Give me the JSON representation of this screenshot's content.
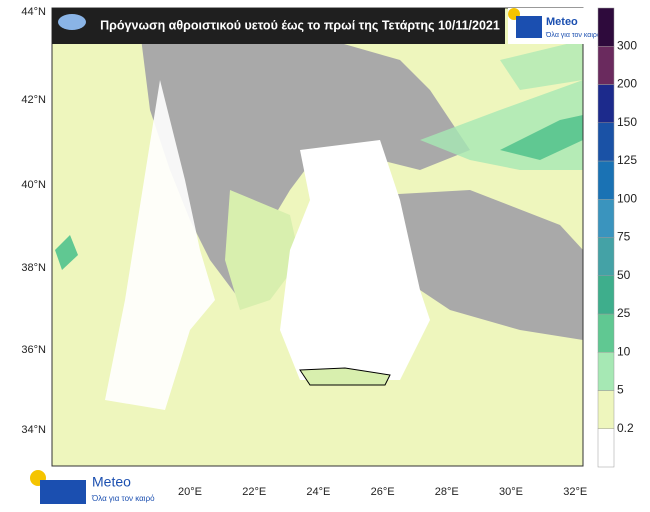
{
  "title": "Πρόγνωση αθροιστικού υετού έως το πρωί της Τετάρτης 10/11/2021",
  "latitudes": [
    "44°N",
    "42°N",
    "40°N",
    "38°N",
    "36°N",
    "34°N"
  ],
  "longitudes": [
    "20°E",
    "22°E",
    "24°E",
    "26°E",
    "28°E",
    "30°E",
    "32°E"
  ],
  "legend": {
    "levels": [
      0.2,
      5,
      10,
      25,
      50,
      75,
      100,
      125,
      150,
      200,
      300
    ],
    "colors": [
      "#ffffff",
      "#eef6bd",
      "#a6e8b4",
      "#60c892",
      "#3eae8c",
      "#44a2a6",
      "#3a94be",
      "#1a72b4",
      "#1a52a6",
      "#1c2a8c",
      "#6a2a5e",
      "#2e0a3c"
    ]
  },
  "logo": {
    "brand": "Meteo",
    "slogan": "Όλα για τον καιρό"
  }
}
